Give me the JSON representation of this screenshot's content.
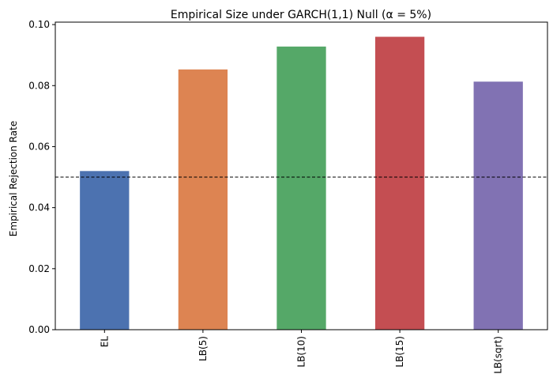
{
  "chart_data": {
    "type": "bar",
    "title": "Empirical Size under GARCH(1,1) Null (α = 5%)",
    "xlabel": "",
    "ylabel": "Empirical Rejection Rate",
    "categories": [
      "EL",
      "LB(5)",
      "LB(10)",
      "LB(15)",
      "LB(sqrt)"
    ],
    "values": [
      0.052,
      0.0853,
      0.0928,
      0.096,
      0.0813
    ],
    "colors": [
      "#4c72b0",
      "#dd8452",
      "#55a868",
      "#c44e52",
      "#8172b3"
    ],
    "ylim": [
      0,
      0.1008
    ],
    "yticks": [
      "0.00",
      "0.02",
      "0.04",
      "0.06",
      "0.08",
      "0.10"
    ],
    "reference_line": {
      "value": 0.05,
      "style": "dashed",
      "color": "#000000"
    },
    "grid": false,
    "legend": "none"
  }
}
